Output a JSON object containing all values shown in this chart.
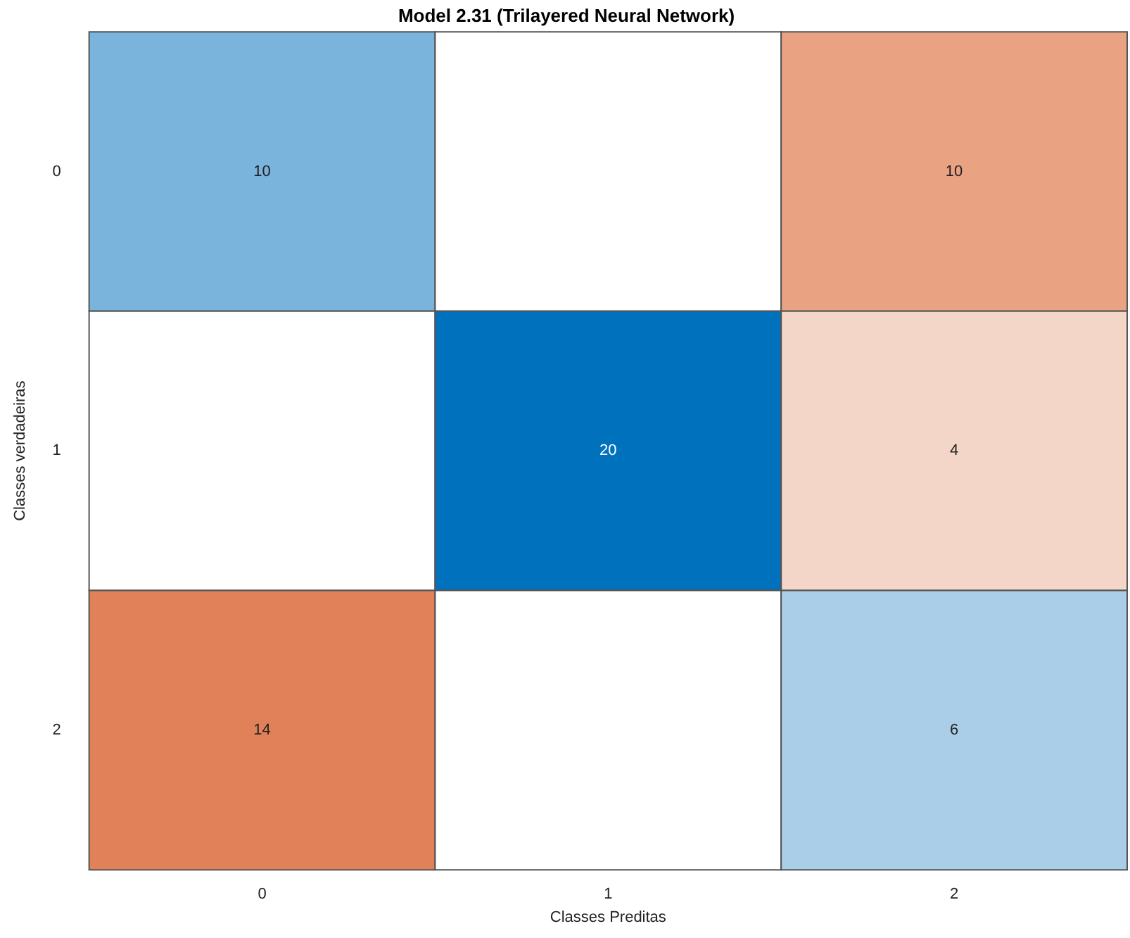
{
  "chart_data": {
    "type": "heatmap",
    "title": "Model 2.31 (Trilayered Neural Network)",
    "xlabel": "Classes Preditas",
    "ylabel": "Classes verdadeiras",
    "categories": [
      "0",
      "1",
      "2"
    ],
    "y_categories": [
      "0",
      "1",
      "2"
    ],
    "cells": [
      [
        10,
        null,
        10
      ],
      [
        null,
        20,
        4
      ],
      [
        14,
        null,
        6
      ]
    ],
    "colors": [
      [
        "#7ab3dc",
        null,
        "#e9a382"
      ],
      [
        null,
        "#0072bd",
        "#f4d6c8"
      ],
      [
        "#e0815a",
        null,
        "#aacde8"
      ]
    ],
    "data_labels": true
  }
}
